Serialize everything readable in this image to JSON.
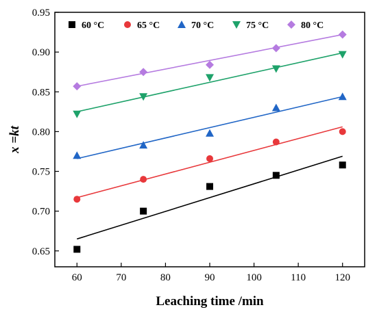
{
  "chart_data": {
    "type": "scatter",
    "xlabel": "Leaching time /min",
    "ylabel": "x =kt",
    "xlim": [
      55,
      125
    ],
    "ylim": [
      0.63,
      0.95
    ],
    "xticks": [
      60,
      70,
      80,
      90,
      100,
      110,
      120
    ],
    "yticks": [
      0.65,
      0.7,
      0.75,
      0.8,
      0.85,
      0.9,
      0.95
    ],
    "grid": false,
    "legend_position": "top",
    "x": [
      60,
      75,
      90,
      105,
      120
    ],
    "series": [
      {
        "name": "60 °C",
        "marker": "square",
        "color": "#000000",
        "values": [
          0.652,
          0.7,
          0.731,
          0.745,
          0.758
        ],
        "fit": [
          0.665,
          0.769
        ]
      },
      {
        "name": "65 °C",
        "marker": "circle",
        "color": "#e8383b",
        "values": [
          0.715,
          0.74,
          0.766,
          0.787,
          0.8
        ],
        "fit": [
          0.717,
          0.806
        ]
      },
      {
        "name": "70 °C",
        "marker": "triangle-up",
        "color": "#2166c6",
        "values": [
          0.77,
          0.783,
          0.798,
          0.83,
          0.844
        ],
        "fit": [
          0.766,
          0.844
        ]
      },
      {
        "name": "75 °C",
        "marker": "triangle-down",
        "color": "#1ea26a",
        "values": [
          0.822,
          0.844,
          0.868,
          0.879,
          0.897
        ],
        "fit": [
          0.825,
          0.899
        ]
      },
      {
        "name": "80 °C",
        "marker": "diamond",
        "color": "#b57be0",
        "values": [
          0.857,
          0.875,
          0.884,
          0.905,
          0.922
        ],
        "fit": [
          0.857,
          0.922
        ]
      }
    ]
  }
}
